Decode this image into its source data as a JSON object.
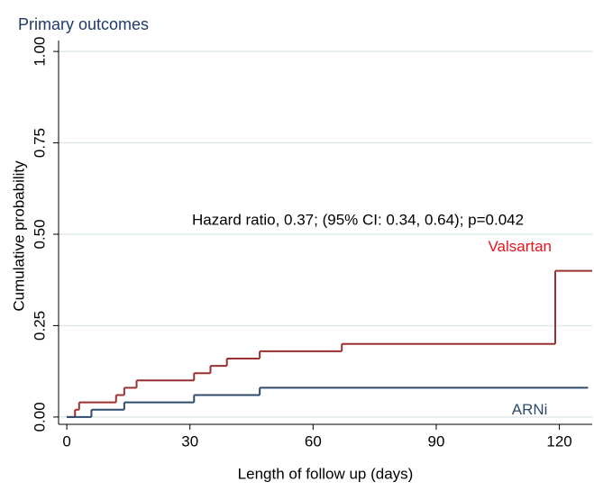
{
  "chart_data": {
    "type": "step",
    "title": "Primary outcomes",
    "x_label": "Length of follow up (days)",
    "y_label": "Cumulative probability",
    "annotation": "Hazard ratio, 0.37; (95% CI: 0.34, 0.64); p=0.042",
    "xlim": [
      -2,
      128
    ],
    "ylim": [
      -0.02,
      1.02
    ],
    "xticks": [
      0,
      30,
      60,
      90,
      120
    ],
    "yticks": [
      {
        "value": 0,
        "label": "0.00"
      },
      {
        "value": 0.25,
        "label": "0.25"
      },
      {
        "value": 0.5,
        "label": "0.50"
      },
      {
        "value": 0.75,
        "label": "0.75"
      },
      {
        "value": 1,
        "label": "1.00"
      }
    ],
    "grid": true,
    "series": [
      {
        "name": "Valsartan",
        "color": "#9c2f2f",
        "label_color": "#e8141c",
        "x": [
          0,
          2,
          3,
          12,
          14,
          17,
          31,
          35,
          39,
          47,
          67,
          119,
          128
        ],
        "values": [
          0,
          0.02,
          0.04,
          0.06,
          0.08,
          0.1,
          0.12,
          0.14,
          0.16,
          0.18,
          0.2,
          0.4,
          0.4
        ]
      },
      {
        "name": "ARNi",
        "color": "#2f4b6b",
        "label_color": "#2f4b6b",
        "x": [
          0,
          6,
          14,
          31,
          47,
          127
        ],
        "values": [
          0,
          0.02,
          0.04,
          0.06,
          0.08,
          0.08
        ]
      }
    ]
  }
}
